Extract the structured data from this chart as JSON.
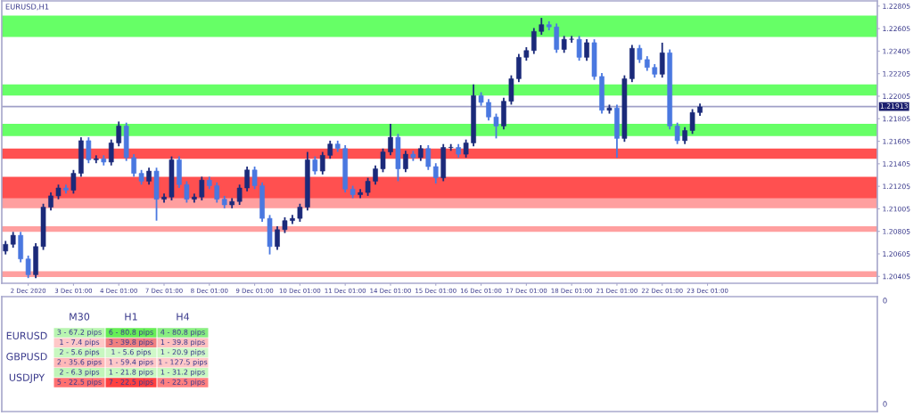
{
  "chart_data": [
    {
      "type": "candlestick",
      "title": "EURUSD,H1",
      "categories": [
        null,
        null,
        null,
        "2 Dec 2020",
        null,
        null,
        null,
        null,
        null,
        "3 Dec 01:00",
        null,
        null,
        null,
        null,
        null,
        "4 Dec 01:00",
        null,
        null,
        null,
        null,
        null,
        "7 Dec 01:00",
        null,
        null,
        null,
        null,
        null,
        "8 Dec 01:00",
        null,
        null,
        null,
        null,
        null,
        "9 Dec 01:00",
        null,
        null,
        null,
        null,
        null,
        "10 Dec 01:00",
        null,
        null,
        null,
        null,
        null,
        "11 Dec 01:00",
        null,
        null,
        null,
        null,
        null,
        "14 Dec 01:00",
        null,
        null,
        null,
        null,
        null,
        "15 Dec 01:00",
        null,
        null,
        null,
        null,
        null,
        "16 Dec 01:00",
        null,
        null,
        null,
        null,
        null,
        "17 Dec 01:00",
        null,
        null,
        null,
        null,
        null,
        "18 Dec 01:00",
        null,
        null,
        null,
        null,
        null,
        "21 Dec 01:00",
        null,
        null,
        null,
        null,
        null,
        "22 Dec 01:00",
        null,
        null,
        null,
        null,
        null,
        "23 Dec 01:00",
        null,
        null,
        null,
        null,
        null,
        null,
        null,
        null,
        null,
        null,
        null,
        null,
        null,
        null,
        null,
        null,
        null,
        null,
        null,
        null,
        null,
        null
      ],
      "ohlc": [
        [
          1.2063,
          1.2072,
          1.206,
          1.2069
        ],
        [
          1.2069,
          1.208,
          1.2066,
          1.2077
        ],
        [
          1.2077,
          1.208,
          1.2053,
          1.2056
        ],
        [
          1.2056,
          1.2059,
          1.2039,
          1.2042
        ],
        [
          1.2042,
          1.207,
          1.2039,
          1.2067
        ],
        [
          1.2067,
          1.2105,
          1.2064,
          1.2102
        ],
        [
          1.2102,
          1.2115,
          1.2099,
          1.2112
        ],
        [
          1.2112,
          1.2122,
          1.2109,
          1.2119
        ],
        [
          1.2119,
          1.2122,
          1.2114,
          1.2117
        ],
        [
          1.2117,
          1.2135,
          1.2114,
          1.2132
        ],
        [
          1.2132,
          1.2164,
          1.2129,
          1.2161
        ],
        [
          1.2161,
          1.2164,
          1.2141,
          1.2144
        ],
        [
          1.2144,
          1.2148,
          1.2141,
          1.2145
        ],
        [
          1.2145,
          1.2148,
          1.2139,
          1.2142
        ],
        [
          1.2142,
          1.2162,
          1.2139,
          1.2159
        ],
        [
          1.2159,
          1.2178,
          1.2156,
          1.2174
        ],
        [
          1.2174,
          1.2177,
          1.2143,
          1.2146
        ],
        [
          1.2146,
          1.2149,
          1.2129,
          1.2132
        ],
        [
          1.2132,
          1.2135,
          1.2122,
          1.2125
        ],
        [
          1.2125,
          1.2137,
          1.2122,
          1.2134
        ],
        [
          1.2134,
          1.2137,
          1.209,
          1.2109
        ],
        [
          1.2109,
          1.2114,
          1.2106,
          1.2111
        ],
        [
          1.2111,
          1.2147,
          1.2108,
          1.2144
        ],
        [
          1.2144,
          1.2147,
          1.2119,
          1.2122
        ],
        [
          1.2122,
          1.2125,
          1.2106,
          1.2109
        ],
        [
          1.2109,
          1.2114,
          1.2106,
          1.2111
        ],
        [
          1.2111,
          1.2129,
          1.2108,
          1.2126
        ],
        [
          1.2126,
          1.2129,
          1.2118,
          1.2121
        ],
        [
          1.2121,
          1.2124,
          1.2106,
          1.2109
        ],
        [
          1.2109,
          1.2112,
          1.2101,
          1.2104
        ],
        [
          1.2104,
          1.211,
          1.2101,
          1.2107
        ],
        [
          1.2107,
          1.2122,
          1.2104,
          1.2119
        ],
        [
          1.2119,
          1.2138,
          1.2116,
          1.2135
        ],
        [
          1.2135,
          1.2138,
          1.2118,
          1.2121
        ],
        [
          1.2121,
          1.2124,
          1.2089,
          1.2092
        ],
        [
          1.2092,
          1.2095,
          1.206,
          1.2067
        ],
        [
          1.2067,
          1.2085,
          1.2064,
          1.2082
        ],
        [
          1.2082,
          1.2093,
          1.2079,
          1.209
        ],
        [
          1.209,
          1.2095,
          1.2087,
          1.2092
        ],
        [
          1.2092,
          1.2105,
          1.2089,
          1.2102
        ],
        [
          1.2102,
          1.2151,
          1.2099,
          1.2144
        ],
        [
          1.2144,
          1.2147,
          1.2131,
          1.2134
        ],
        [
          1.2134,
          1.2151,
          1.2131,
          1.2148
        ],
        [
          1.2148,
          1.2161,
          1.2145,
          1.2158
        ],
        [
          1.2158,
          1.2161,
          1.2151,
          1.2154
        ],
        [
          1.2154,
          1.2157,
          1.2115,
          1.2118
        ],
        [
          1.2118,
          1.2121,
          1.211,
          1.2113
        ],
        [
          1.2113,
          1.2118,
          1.211,
          1.2115
        ],
        [
          1.2115,
          1.2128,
          1.2112,
          1.2125
        ],
        [
          1.2125,
          1.2139,
          1.2122,
          1.2136
        ],
        [
          1.2136,
          1.2154,
          1.2133,
          1.2151
        ],
        [
          1.2151,
          1.2176,
          1.2148,
          1.2164
        ],
        [
          1.2164,
          1.2167,
          1.2125,
          1.2136
        ],
        [
          1.2136,
          1.2152,
          1.2133,
          1.2149
        ],
        [
          1.2149,
          1.2152,
          1.2143,
          1.2146
        ],
        [
          1.2146,
          1.2157,
          1.2143,
          1.2154
        ],
        [
          1.2154,
          1.2157,
          1.2135,
          1.2138
        ],
        [
          1.2138,
          1.2141,
          1.2123,
          1.2128
        ],
        [
          1.2128,
          1.2158,
          1.2125,
          1.2155
        ],
        [
          1.2155,
          1.2158,
          1.2152,
          1.2155
        ],
        [
          1.2155,
          1.2158,
          1.2146,
          1.2149
        ],
        [
          1.2149,
          1.2162,
          1.2146,
          1.2159
        ],
        [
          1.2159,
          1.2211,
          1.2156,
          1.2201
        ],
        [
          1.2201,
          1.2204,
          1.2192,
          1.2195
        ],
        [
          1.2195,
          1.2198,
          1.2179,
          1.2182
        ],
        [
          1.2182,
          1.2185,
          1.2163,
          1.2174
        ],
        [
          1.2174,
          1.2199,
          1.2171,
          1.2196
        ],
        [
          1.2196,
          1.2219,
          1.2193,
          1.2216
        ],
        [
          1.2216,
          1.2238,
          1.2213,
          1.2235
        ],
        [
          1.2235,
          1.2244,
          1.2232,
          1.2241
        ],
        [
          1.2241,
          1.2261,
          1.2238,
          1.2258
        ],
        [
          1.2258,
          1.227,
          1.2255,
          1.2264
        ],
        [
          1.2264,
          1.2267,
          1.2259,
          1.2262
        ],
        [
          1.2262,
          1.2265,
          1.2239,
          1.2242
        ],
        [
          1.2242,
          1.2254,
          1.2239,
          1.2251
        ],
        [
          1.2251,
          1.2254,
          1.2248,
          1.2251
        ],
        [
          1.2251,
          1.2254,
          1.2232,
          1.2235
        ],
        [
          1.2235,
          1.2251,
          1.2232,
          1.2248
        ],
        [
          1.2248,
          1.2251,
          1.2215,
          1.2218
        ],
        [
          1.2218,
          1.2221,
          1.2185,
          1.2188
        ],
        [
          1.2188,
          1.2193,
          1.2185,
          1.219
        ],
        [
          1.219,
          1.2193,
          1.2146,
          1.2163
        ],
        [
          1.2163,
          1.2219,
          1.216,
          1.2216
        ],
        [
          1.2216,
          1.2246,
          1.2213,
          1.2243
        ],
        [
          1.2243,
          1.2246,
          1.223,
          1.2233
        ],
        [
          1.2233,
          1.2236,
          1.2223,
          1.2226
        ],
        [
          1.2226,
          1.2229,
          1.2217,
          1.222
        ],
        [
          1.222,
          1.2248,
          1.2217,
          1.2239
        ],
        [
          1.2239,
          1.2242,
          1.2171,
          1.2174
        ],
        [
          1.2174,
          1.2177,
          1.2158,
          1.2161
        ],
        [
          1.2161,
          1.2173,
          1.2158,
          1.217
        ],
        [
          1.217,
          1.2189,
          1.2167,
          1.2186
        ],
        [
          1.2186,
          1.2194,
          1.2183,
          1.2191
        ],
        null,
        null,
        null,
        null,
        null,
        null,
        null,
        null,
        null,
        null,
        null,
        null,
        null,
        null,
        null,
        null,
        null,
        null,
        null,
        null,
        null,
        null,
        null
      ],
      "colors": [
        "#1b2a7a",
        "#1b2a7a",
        "#4a78e0",
        "#4a78e0",
        "#1b2a7a",
        "#1b2a7a",
        "#1b2a7a",
        "#1b2a7a",
        "#4a78e0",
        "#1b2a7a",
        "#1b2a7a",
        "#4a78e0",
        "#1b2a7a",
        "#4a78e0",
        "#1b2a7a",
        "#1b2a7a",
        "#4a78e0",
        "#4a78e0",
        "#4a78e0",
        "#1b2a7a",
        "#4a78e0",
        "#1b2a7a",
        "#1b2a7a",
        "#4a78e0",
        "#4a78e0",
        "#1b2a7a",
        "#1b2a7a",
        "#4a78e0",
        "#4a78e0",
        "#4a78e0",
        "#1b2a7a",
        "#1b2a7a",
        "#1b2a7a",
        "#4a78e0",
        "#4a78e0",
        "#4a78e0",
        "#1b2a7a",
        "#1b2a7a",
        "#1b2a7a",
        "#1b2a7a",
        "#1b2a7a",
        "#4a78e0",
        "#1b2a7a",
        "#1b2a7a",
        "#4a78e0",
        "#4a78e0",
        "#4a78e0",
        "#1b2a7a",
        "#1b2a7a",
        "#1b2a7a",
        "#1b2a7a",
        "#1b2a7a",
        "#4a78e0",
        "#1b2a7a",
        "#4a78e0",
        "#1b2a7a",
        "#4a78e0",
        "#4a78e0",
        "#1b2a7a",
        "#1b2a7a",
        "#4a78e0",
        "#1b2a7a",
        "#1b2a7a",
        "#4a78e0",
        "#4a78e0",
        "#4a78e0",
        "#1b2a7a",
        "#1b2a7a",
        "#1b2a7a",
        "#1b2a7a",
        "#1b2a7a",
        "#1b2a7a",
        "#4a78e0",
        "#4a78e0",
        "#1b2a7a",
        "#1b2a7a",
        "#4a78e0",
        "#1b2a7a",
        "#4a78e0",
        "#4a78e0",
        "#1b2a7a",
        "#4a78e0",
        "#1b2a7a",
        "#1b2a7a",
        "#4a78e0",
        "#4a78e0",
        "#4a78e0",
        "#1b2a7a",
        "#4a78e0",
        "#4a78e0",
        "#1b2a7a",
        "#1b2a7a",
        "#1b2a7a",
        null,
        null,
        null,
        null,
        null,
        null,
        null,
        null,
        null,
        null,
        null,
        null,
        null,
        null,
        null,
        null,
        null,
        null,
        null,
        null,
        null,
        null,
        null
      ],
      "ylim": [
        1.20344,
        1.22851
      ],
      "yticks": [
        1.20405,
        1.20605,
        1.20805,
        1.21005,
        1.21205,
        1.21405,
        1.21605,
        1.21805,
        1.22005,
        1.22205,
        1.22405,
        1.22605,
        1.22805
      ],
      "ref_lines": [
        {
          "axis": "y",
          "value": 1.21913,
          "label": "1.21913",
          "color": "#a0a0c8"
        }
      ],
      "bands": [
        {
          "axis": "y",
          "from": 1.2165,
          "to": 1.2176,
          "color": "#66ff66"
        },
        {
          "axis": "y",
          "from": 1.2253,
          "to": 1.2272,
          "color": "#66ff66"
        },
        {
          "axis": "y",
          "from": 1.2201,
          "to": 1.2211,
          "color": "#66ff66"
        },
        {
          "axis": "y",
          "from": 1.2106,
          "to": 1.2129,
          "color": "#ff5050"
        },
        {
          "axis": "y",
          "from": 1.2145,
          "to": 1.2154,
          "color": "#ff5050"
        },
        {
          "axis": "y",
          "from": 1.2101,
          "to": 1.211,
          "color": "#ff9f9f"
        },
        {
          "axis": "y",
          "from": 1.208,
          "to": 1.2085,
          "color": "#ff9f9f"
        },
        {
          "axis": "y",
          "from": 1.204,
          "to": 1.2045,
          "color": "#ff9f9f"
        }
      ]
    },
    {
      "type": "other",
      "annotations": [
        "M30",
        "H1",
        "H4",
        "EURUSD",
        "GBPUSD",
        "USDJPY",
        "3 - 67.2 pips",
        "6 - 80.8 pips",
        "4 - 80.8 pips",
        "1 - 7.4 pips",
        "3 - 39.8 pips",
        "1 - 39.8 pips",
        "2 - 5.6 pips",
        "1 - 5.6 pips",
        "1 - 20.9 pips",
        "2 - 35.6 pips",
        "1 - 59.4 pips",
        "1 - 127.5 pips",
        "2 - 6.3 pips",
        "1 - 21.8 pips",
        "1 - 31.2 pips",
        "5 - 22.5 pips",
        "7 - 22.5 pips",
        "4 - 22.5 pips",
        "0",
        "0"
      ],
      "colors": [
        "#b8f5b0",
        "#66ee55",
        "#88ee80",
        "#ffc8c8",
        "#f08080",
        "#ffc0c0",
        "#c8f8c0",
        "#d0f8c8",
        "#d0f8c8",
        "#ffb8b8",
        "#ffc8c8",
        "#ffc8c8",
        "#c0f5b8",
        "#c8f8c0",
        "#c8f8c0",
        "#ff7070",
        "#ff4040",
        "#ff8080"
      ]
    }
  ]
}
